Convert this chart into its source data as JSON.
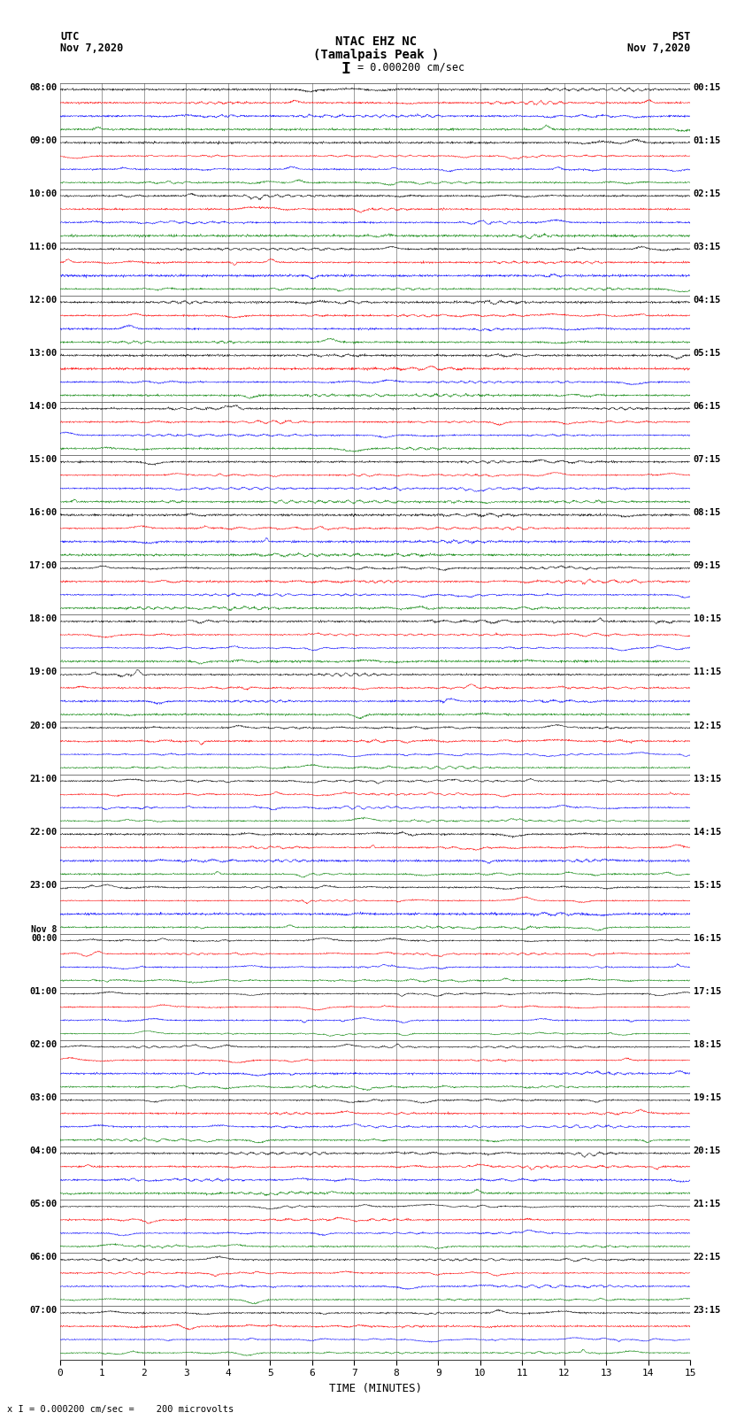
{
  "title_line1": "NTAC EHZ NC",
  "title_line2": "(Tamalpais Peak )",
  "scale_text": "I = 0.000200 cm/sec",
  "utc_label": "UTC",
  "utc_date": "Nov 7,2020",
  "pst_label": "PST",
  "pst_date": "Nov 7,2020",
  "xlabel": "TIME (MINUTES)",
  "footer_text": "x I = 0.000200 cm/sec =    200 microvolts",
  "xlim": [
    0,
    15
  ],
  "xticks": [
    0,
    1,
    2,
    3,
    4,
    5,
    6,
    7,
    8,
    9,
    10,
    11,
    12,
    13,
    14,
    15
  ],
  "background_color": "#ffffff",
  "trace_colors": [
    "black",
    "red",
    "blue",
    "green"
  ],
  "utc_times_labeled": [
    "08:00",
    "09:00",
    "10:00",
    "11:00",
    "12:00",
    "13:00",
    "14:00",
    "15:00",
    "16:00",
    "17:00",
    "18:00",
    "19:00",
    "20:00",
    "21:00",
    "22:00",
    "23:00",
    "Nov 8\n00:00",
    "01:00",
    "02:00",
    "03:00",
    "04:00",
    "05:00",
    "06:00",
    "07:00"
  ],
  "pst_times_labeled": [
    "00:15",
    "01:15",
    "02:15",
    "03:15",
    "04:15",
    "05:15",
    "06:15",
    "07:15",
    "08:15",
    "09:15",
    "10:15",
    "11:15",
    "12:15",
    "13:15",
    "14:15",
    "15:15",
    "16:15",
    "17:15",
    "18:15",
    "19:15",
    "20:15",
    "21:15",
    "22:15",
    "23:15"
  ],
  "n_rows": 96,
  "n_hours": 24,
  "traces_per_hour": 4,
  "noise_seed": 42,
  "grid_color": "#777777",
  "grid_minutes": [
    0,
    1,
    2,
    3,
    4,
    5,
    6,
    7,
    8,
    9,
    10,
    11,
    12,
    13,
    14,
    15
  ],
  "amplitude_profile": [
    0.08,
    0.08,
    0.08,
    0.08,
    0.08,
    0.08,
    0.08,
    0.08,
    0.08,
    0.08,
    0.08,
    0.08,
    0.08,
    0.08,
    0.08,
    0.08,
    0.08,
    0.08,
    0.08,
    0.08,
    0.08,
    0.08,
    0.08,
    0.08,
    0.08,
    0.08,
    0.08,
    0.08,
    0.08,
    0.08,
    0.08,
    0.08,
    0.1,
    0.1,
    0.1,
    0.1,
    0.12,
    0.12,
    0.12,
    0.12,
    0.2,
    0.2,
    0.2,
    0.2,
    0.22,
    0.22,
    0.22,
    0.22,
    0.25,
    0.25,
    0.25,
    0.25,
    0.28,
    0.28,
    0.28,
    0.28,
    0.3,
    0.3,
    0.3,
    0.3,
    0.28,
    0.28,
    0.28,
    0.28,
    0.35,
    0.35,
    0.35,
    0.35,
    0.32,
    0.32,
    0.32,
    0.32,
    0.18,
    0.18,
    0.18,
    0.18,
    0.15,
    0.15,
    0.15,
    0.15,
    0.18,
    0.18,
    0.18,
    0.18,
    0.15,
    0.15,
    0.15,
    0.15,
    0.18,
    0.18,
    0.18,
    0.18,
    0.3,
    0.3,
    0.3,
    0.3
  ]
}
